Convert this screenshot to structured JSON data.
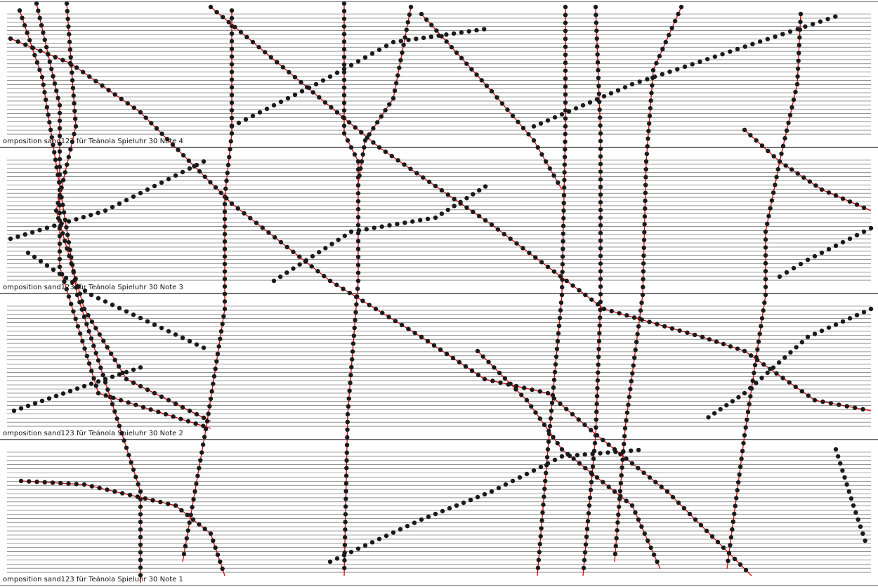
{
  "strips": [
    {
      "label": "omposition sand123 für Teánola Spieluhr 30 Note  4"
    },
    {
      "label": "omposition sand123 für Teánola Spieluhr 30 Note  3"
    },
    {
      "label": "omposition sand123 für Teánola Spieluhr 30 Note  2"
    },
    {
      "label": "omposition sand123 für Teánola Spieluhr 30 Note  1"
    }
  ],
  "colors": {
    "staff_lines": "#555555",
    "holes": "#1a1a1a",
    "guide_lines": "#e00000"
  },
  "staff_line_count": 30
}
